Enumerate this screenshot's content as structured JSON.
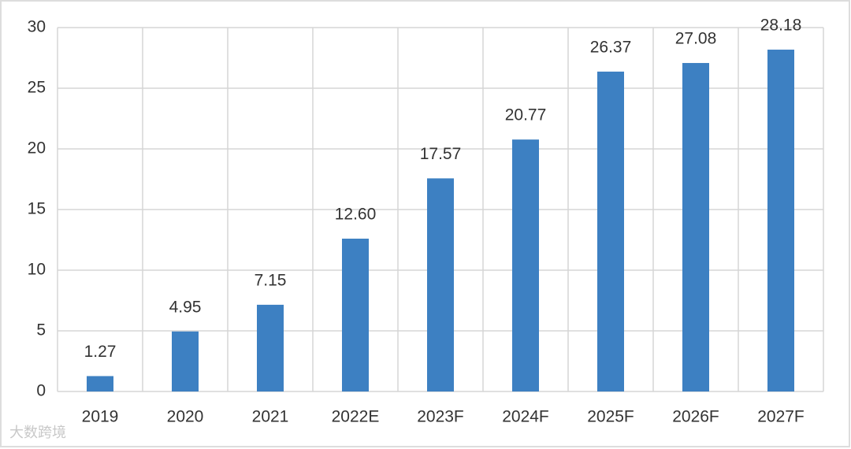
{
  "chart_data": {
    "type": "bar",
    "categories": [
      "2019",
      "2020",
      "2021",
      "2022E",
      "2023F",
      "2024F",
      "2025F",
      "2026F",
      "2027F"
    ],
    "values": [
      1.27,
      4.95,
      7.15,
      12.6,
      17.57,
      20.77,
      26.37,
      27.08,
      28.18
    ],
    "value_labels": [
      "1.27",
      "4.95",
      "7.15",
      "12.60",
      "17.57",
      "20.77",
      "26.37",
      "27.08",
      "28.18"
    ],
    "color": "#3d80c2",
    "ylim": [
      0,
      30
    ],
    "yticks": [
      0,
      5,
      10,
      15,
      20,
      25,
      30
    ],
    "grid": true
  },
  "watermark": "大数跨境"
}
